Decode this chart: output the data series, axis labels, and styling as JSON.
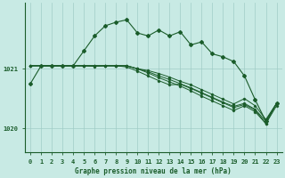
{
  "background_color": "#c8eae4",
  "plot_bg_color": "#c8eae4",
  "grid_color": "#a0ccc6",
  "line_color": "#1a5c2a",
  "title": "Graphe pression niveau de la mer (hPa)",
  "hours": [
    0,
    1,
    2,
    3,
    4,
    5,
    6,
    7,
    8,
    9,
    10,
    11,
    12,
    13,
    14,
    15,
    16,
    17,
    18,
    19,
    20,
    21,
    22,
    23
  ],
  "ylim": [
    1019.6,
    1022.1
  ],
  "yticks": [
    1020,
    1021
  ],
  "line_jagged": [
    1020.75,
    1021.05,
    1021.05,
    1021.05,
    1021.05,
    1021.3,
    1021.55,
    1021.72,
    1021.78,
    1021.82,
    1021.6,
    1021.55,
    1021.65,
    1021.55,
    1021.62,
    1021.4,
    1021.45,
    1021.25,
    1021.2,
    1021.12,
    1020.88,
    1020.48,
    1020.12,
    1020.42
  ],
  "line_s1": [
    1021.05,
    1021.05,
    1021.05,
    1021.05,
    1021.05,
    1021.05,
    1021.05,
    1021.05,
    1021.05,
    1021.05,
    1021.0,
    1020.95,
    1020.88,
    1020.82,
    1020.75,
    1020.68,
    1020.6,
    1020.52,
    1020.44,
    1020.37,
    1020.42,
    1020.32,
    1020.12,
    1020.42
  ],
  "line_s2": [
    1021.05,
    1021.05,
    1021.05,
    1021.05,
    1021.05,
    1021.05,
    1021.05,
    1021.05,
    1021.05,
    1021.05,
    1021.0,
    1020.93,
    1020.85,
    1020.78,
    1020.71,
    1020.63,
    1020.54,
    1020.46,
    1020.38,
    1020.3,
    1020.38,
    1020.28,
    1020.08,
    1020.38
  ],
  "line_s3": [
    1021.05,
    1021.05,
    1021.05,
    1021.05,
    1021.05,
    1021.05,
    1021.05,
    1021.05,
    1021.05,
    1021.05,
    1021.0,
    1020.97,
    1020.92,
    1020.86,
    1020.79,
    1020.73,
    1020.65,
    1020.57,
    1020.49,
    1020.41,
    1020.5,
    1020.38,
    1020.15,
    1020.42
  ],
  "line_s4": [
    1021.05,
    1021.05,
    1021.05,
    1021.05,
    1021.05,
    1021.05,
    1021.04,
    1021.05,
    1021.05,
    1021.03,
    1020.96,
    1020.88,
    1020.8,
    1020.73,
    1020.74,
    1020.67,
    1020.59,
    1020.51,
    1020.43,
    1020.35,
    1020.4,
    1020.31,
    1020.08,
    1020.42
  ]
}
